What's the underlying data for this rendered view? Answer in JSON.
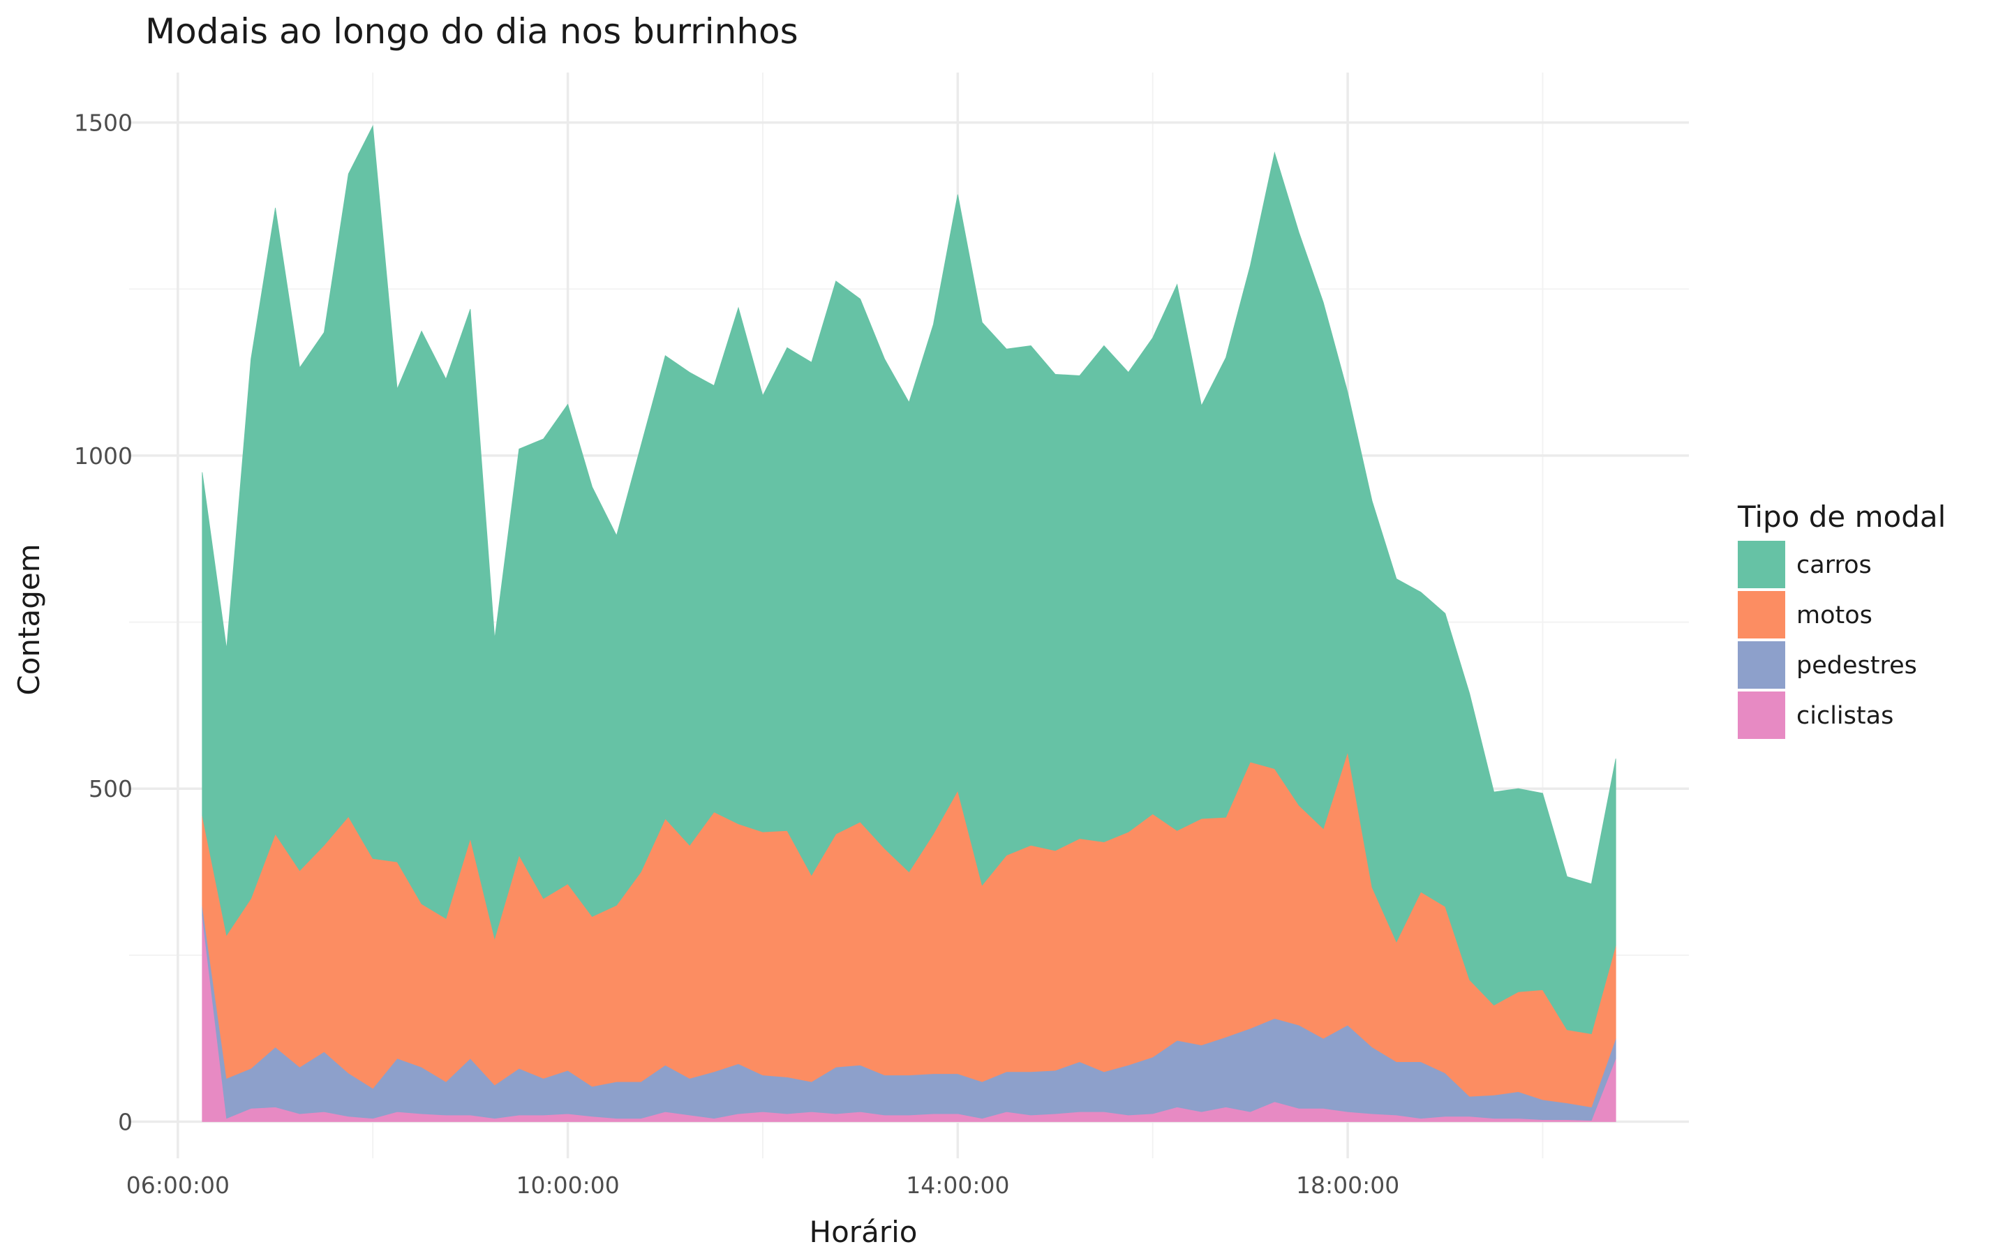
{
  "chart_data": {
    "type": "area",
    "stacked": true,
    "title": "Modais ao longo do dia nos burrinhos",
    "xlabel": "Horário",
    "ylabel": "Contagem",
    "x_ticks": [
      "06:00:00",
      "10:00:00",
      "14:00:00",
      "18:00:00"
    ],
    "x_tick_hours": [
      6,
      10,
      14,
      18
    ],
    "y_ticks": [
      0,
      500,
      1000,
      1500
    ],
    "xlim_hours": [
      5.5,
      21.5
    ],
    "ylim": [
      -55,
      1575
    ],
    "grid": true,
    "legend": {
      "title": "Tipo de modal",
      "position": "right"
    },
    "x": [
      "06:15",
      "06:30",
      "06:45",
      "07:00",
      "07:15",
      "07:30",
      "07:45",
      "08:00",
      "08:15",
      "08:30",
      "08:45",
      "09:00",
      "09:15",
      "09:30",
      "09:45",
      "10:00",
      "10:15",
      "10:30",
      "10:45",
      "11:00",
      "11:15",
      "11:30",
      "11:45",
      "12:00",
      "12:15",
      "12:30",
      "12:45",
      "13:00",
      "13:15",
      "13:30",
      "13:45",
      "14:00",
      "14:15",
      "14:30",
      "14:45",
      "15:00",
      "15:15",
      "15:30",
      "15:45",
      "16:00",
      "16:15",
      "16:30",
      "16:45",
      "17:00",
      "17:15",
      "17:30",
      "17:45",
      "18:00",
      "18:15",
      "18:30",
      "18:45",
      "19:00",
      "19:15",
      "19:30",
      "19:45",
      "20:00",
      "20:15",
      "20:30",
      "20:45"
    ],
    "series": [
      {
        "name": "carros",
        "color": "#66c2a5",
        "values": [
          515,
          430,
          810,
          940,
          755,
          770,
          965,
          1100,
          710,
          860,
          810,
          795,
          450,
          610,
          690,
          720,
          645,
          555,
          640,
          695,
          710,
          640,
          775,
          655,
          725,
          770,
          830,
          785,
          735,
          705,
          765,
          895,
          845,
          760,
          750,
          715,
          695,
          745,
          690,
          715,
          820,
          620,
          690,
          745,
          925,
          860,
          790,
          540,
          580,
          545,
          450,
          440,
          430,
          320,
          305,
          295,
          230,
          225,
          280
        ]
      },
      {
        "name": "motos",
        "color": "#fc8d62",
        "values": [
          135,
          215,
          255,
          320,
          295,
          310,
          385,
          345,
          295,
          245,
          245,
          330,
          220,
          320,
          270,
          280,
          255,
          265,
          315,
          370,
          350,
          390,
          360,
          365,
          370,
          310,
          350,
          365,
          340,
          305,
          360,
          425,
          295,
          325,
          340,
          330,
          335,
          345,
          350,
          365,
          315,
          340,
          330,
          400,
          375,
          330,
          315,
          410,
          240,
          180,
          255,
          250,
          175,
          135,
          150,
          165,
          110,
          110,
          140
        ]
      },
      {
        "name": "pedestres",
        "color": "#8da0cb",
        "values": [
          15,
          60,
          60,
          90,
          70,
          90,
          65,
          45,
          80,
          70,
          50,
          85,
          50,
          70,
          55,
          65,
          45,
          55,
          55,
          70,
          55,
          70,
          75,
          55,
          55,
          45,
          70,
          70,
          60,
          60,
          60,
          60,
          55,
          60,
          65,
          65,
          75,
          60,
          75,
          85,
          100,
          100,
          105,
          125,
          125,
          125,
          105,
          130,
          100,
          80,
          85,
          65,
          30,
          35,
          40,
          30,
          25,
          20,
          30
        ]
      },
      {
        "name": "ciclistas",
        "color": "#e78ac3",
        "values": [
          310,
          5,
          20,
          22,
          12,
          15,
          8,
          5,
          15,
          12,
          10,
          10,
          5,
          10,
          10,
          12,
          8,
          5,
          5,
          15,
          10,
          5,
          12,
          15,
          12,
          15,
          12,
          15,
          10,
          10,
          12,
          12,
          5,
          15,
          10,
          12,
          15,
          15,
          10,
          12,
          22,
          15,
          22,
          15,
          30,
          20,
          20,
          15,
          12,
          10,
          5,
          8,
          8,
          5,
          5,
          3,
          3,
          2,
          95
        ]
      }
    ]
  }
}
